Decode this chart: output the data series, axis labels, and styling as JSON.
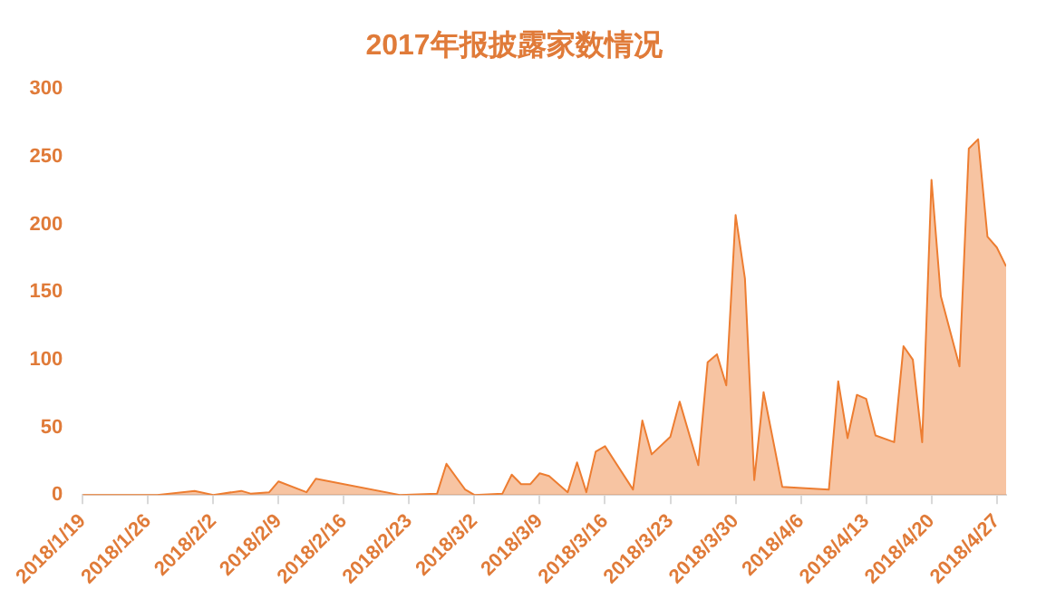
{
  "chart_data": {
    "type": "area",
    "title": "2017年报披露家数情况",
    "x": [
      "2018-01-19",
      "2018-01-27",
      "2018-01-31",
      "2018-02-02",
      "2018-02-05",
      "2018-02-06",
      "2018-02-08",
      "2018-02-09",
      "2018-02-12",
      "2018-02-13",
      "2018-02-22",
      "2018-02-26",
      "2018-02-27",
      "2018-03-01",
      "2018-03-02",
      "2018-03-05",
      "2018-03-06",
      "2018-03-07",
      "2018-03-08",
      "2018-03-09",
      "2018-03-10",
      "2018-03-12",
      "2018-03-13",
      "2018-03-14",
      "2018-03-15",
      "2018-03-16",
      "2018-03-19",
      "2018-03-20",
      "2018-03-21",
      "2018-03-23",
      "2018-03-24",
      "2018-03-26",
      "2018-03-27",
      "2018-03-28",
      "2018-03-29",
      "2018-03-30",
      "2018-03-31",
      "2018-04-01",
      "2018-04-02",
      "2018-04-04",
      "2018-04-09",
      "2018-04-10",
      "2018-04-11",
      "2018-04-12",
      "2018-04-13",
      "2018-04-14",
      "2018-04-16",
      "2018-04-17",
      "2018-04-18",
      "2018-04-19",
      "2018-04-20",
      "2018-04-21",
      "2018-04-23",
      "2018-04-24",
      "2018-04-25",
      "2018-04-26",
      "2018-04-27",
      "2018-04-28"
    ],
    "series": [
      {
        "color": "#ed7d31",
        "values": [
          0,
          0,
          3,
          0,
          3,
          1,
          2,
          10,
          2,
          12,
          0,
          1,
          23,
          4,
          0,
          1,
          15,
          8,
          8,
          16,
          14,
          2,
          24,
          2,
          32,
          36,
          4,
          55,
          30,
          43,
          69,
          22,
          98,
          104,
          81,
          207,
          160,
          11,
          76,
          6,
          4,
          84,
          42,
          74,
          71,
          44,
          39,
          110,
          100,
          39,
          233,
          147,
          95,
          256,
          263,
          191,
          183,
          169
        ]
      }
    ],
    "xlim": [
      "2018-01-19",
      "2018-04-28"
    ],
    "xticks": [
      {
        "value": "2018-01-19",
        "label": "2018/1/19"
      },
      {
        "value": "2018-01-26",
        "label": "2018/1/26"
      },
      {
        "value": "2018-02-02",
        "label": "2018/2/2"
      },
      {
        "value": "2018-02-09",
        "label": "2018/2/9"
      },
      {
        "value": "2018-02-16",
        "label": "2018/2/16"
      },
      {
        "value": "2018-02-23",
        "label": "2018/2/23"
      },
      {
        "value": "2018-03-02",
        "label": "2018/3/2"
      },
      {
        "value": "2018-03-09",
        "label": "2018/3/9"
      },
      {
        "value": "2018-03-16",
        "label": "2018/3/16"
      },
      {
        "value": "2018-03-23",
        "label": "2018/3/23"
      },
      {
        "value": "2018-03-30",
        "label": "2018/3/30"
      },
      {
        "value": "2018-04-06",
        "label": "2018/4/6"
      },
      {
        "value": "2018-04-13",
        "label": "2018/4/13"
      },
      {
        "value": "2018-04-20",
        "label": "2018/4/20"
      },
      {
        "value": "2018-04-27",
        "label": "2018/4/27"
      }
    ],
    "ylim": [
      0,
      300
    ],
    "yticks": [
      0,
      50,
      100,
      150,
      200,
      250,
      300
    ],
    "grid": false,
    "legend": false,
    "marker": "none"
  }
}
